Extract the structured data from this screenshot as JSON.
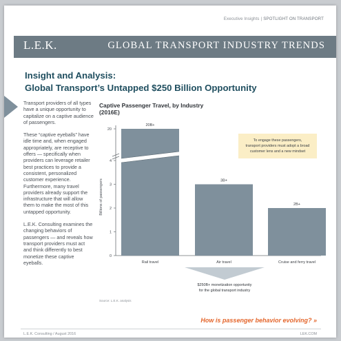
{
  "header": {
    "series_tag": "Executive Insights",
    "separator": "|",
    "spotlight": "SPOTLIGHT ON TRANSPORT",
    "logo": "L.E.K.",
    "banner_title": "GLOBAL TRANSPORT INDUSTRY TRENDS"
  },
  "headline": {
    "line1": "Insight and Analysis:",
    "line2": "Global Transport’s Untapped $250 Billion Opportunity"
  },
  "body": {
    "paragraphs": [
      "Transport providers of all types have a unique opportunity to capitalize on a captive audience of passengers.",
      "These “captive eyeballs” have idle time and, when engaged appropriately, are receptive to offers — specifically when providers can leverage retailer best practices to provide a consistent, personalized customer experience. Furthermore, many travel providers already support the infrastructure that will allow them to make the most of this untapped opportunity.",
      "L.E.K. Consulting examines the changing behaviors of passengers — and reveals how transport providers must act and think differently to best monetize these captive eyeballs."
    ]
  },
  "chart_data": {
    "type": "bar",
    "title": "Captive Passenger Travel, by Industry",
    "subtitle": "(2016E)",
    "ylabel": "Billions of passengers",
    "xlabel": "",
    "categories": [
      "Rail travel",
      "Air travel",
      "Cruise and ferry travel"
    ],
    "values": [
      20,
      3,
      2
    ],
    "data_labels": [
      "20B+",
      "3B+",
      "2B+"
    ],
    "y_ticks": [
      "0",
      "1",
      "2",
      "3",
      "4",
      "20"
    ],
    "axis_break": "between 4 and 20",
    "bar_color": "#7f909c",
    "callout": {
      "lines": [
        "To engage these passengers,",
        "transport providers must adopt a broad",
        "customer lens and a new mindset"
      ],
      "color": "#fbeec6"
    },
    "opportunity": {
      "lines": [
        "$250B+ monetization opportunity",
        "for the global transport industry"
      ],
      "color": "#c2cbd2"
    },
    "source": "Source: L.E.K. analysis"
  },
  "cta": {
    "text": "How is passenger behavior evolving?",
    "chevrons": "»",
    "color": "#e4662c"
  },
  "footer": {
    "left": "L.E.K. Consulting / August 2016",
    "right": "LEK.COM"
  },
  "colors": {
    "banner": "#6d7b84",
    "headline": "#1f4e5f",
    "accent": "#e4662c"
  }
}
